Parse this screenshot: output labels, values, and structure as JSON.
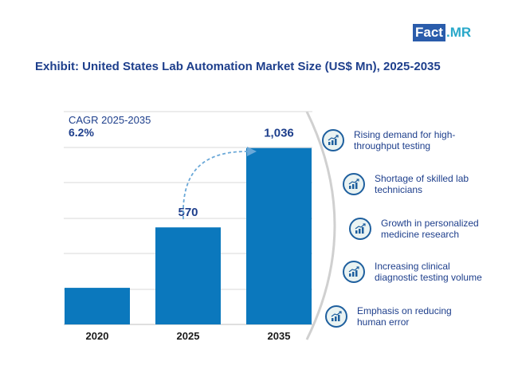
{
  "logo": {
    "left": "Fact",
    "right": ".MR"
  },
  "title": "Exhibit: United States Lab Automation Market Size (US$ Mn), 2025-2035",
  "cagr": {
    "label": "CAGR 2025-2035",
    "value": "6.2%"
  },
  "drivers": [
    {
      "text": "Rising demand for high-throughput testing",
      "icon": "bar-chart-growth-icon"
    },
    {
      "text": "Shortage of skilled lab technicians",
      "icon": "bar-chart-growth-icon"
    },
    {
      "text": "Growth in personalized medicine research",
      "icon": "bar-chart-growth-icon"
    },
    {
      "text": "Increasing clinical diagnostic testing volume",
      "icon": "bar-chart-growth-icon"
    },
    {
      "text": "Emphasis on reducing human error",
      "icon": "bar-chart-growth-icon"
    }
  ],
  "colors": {
    "bar": "#0b78bd",
    "title": "#1e3f8c",
    "arc": "#d0d0d0",
    "arrow": "#6aa8d8"
  },
  "chart_data": {
    "type": "bar",
    "title": "Exhibit: United States Lab Automation Market Size (US$ Mn), 2025-2035",
    "categories": [
      "2020",
      "2025",
      "2035"
    ],
    "values": [
      215,
      570,
      1036
    ],
    "data_labels": [
      "",
      "570",
      "1,036"
    ],
    "xlabel": "",
    "ylabel": "",
    "ylim": [
      0,
      1250
    ],
    "grid": true,
    "legend": "none",
    "annotation": "CAGR 2025-2035 6.2%"
  }
}
